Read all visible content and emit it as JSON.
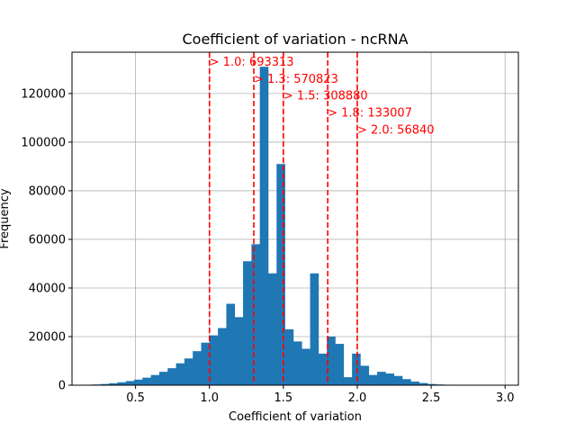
{
  "chart_data": {
    "type": "bar",
    "title": "Coefficient of variation - ncRNA",
    "xlabel": "Coefficient of variation",
    "ylabel": "Frequency",
    "xlim": [
      0.07,
      3.09
    ],
    "ylim": [
      0,
      137000
    ],
    "xticks": [
      0.5,
      1.0,
      1.5,
      2.0,
      2.5,
      3.0
    ],
    "xtick_labels": [
      "0.5",
      "1.0",
      "1.5",
      "2.0",
      "2.5",
      "3.0"
    ],
    "yticks": [
      0,
      20000,
      40000,
      60000,
      80000,
      100000,
      120000
    ],
    "ytick_labels": [
      "0",
      "20000",
      "40000",
      "60000",
      "80000",
      "100000",
      "120000"
    ],
    "grid": true,
    "color": "#1f77b4",
    "bin_width": 0.0567,
    "bin_starts": [
      0.15,
      0.2067,
      0.2634,
      0.3201,
      0.3768,
      0.4335,
      0.4902,
      0.5469,
      0.6036,
      0.6603,
      0.717,
      0.7737,
      0.8304,
      0.8871,
      0.9438,
      1.0005,
      1.0572,
      1.1139,
      1.1706,
      1.2273,
      1.284,
      1.3407,
      1.3974,
      1.4541,
      1.5108,
      1.5675,
      1.6242,
      1.6809,
      1.7376,
      1.7943,
      1.851,
      1.9077,
      1.9644,
      2.0211,
      2.0778,
      2.1345,
      2.1912,
      2.2479,
      2.3046,
      2.3613,
      2.418,
      2.4747,
      2.5314,
      2.5881,
      2.6448,
      2.7015,
      2.7582,
      2.8149,
      2.8716,
      2.9283
    ],
    "values": [
      200,
      300,
      500,
      800,
      1200,
      1700,
      2300,
      3100,
      4200,
      5500,
      7000,
      9000,
      11000,
      14000,
      17500,
      20500,
      23500,
      33500,
      28000,
      51000,
      58000,
      131000,
      46000,
      91000,
      23000,
      18000,
      15000,
      46000,
      13000,
      20000,
      17000,
      3300,
      13000,
      8000,
      4200,
      5500,
      4800,
      3800,
      2500,
      1500,
      900,
      500,
      300,
      200,
      100,
      80,
      60,
      40,
      20,
      10
    ],
    "vlines": [
      1.0,
      1.3,
      1.5,
      1.8,
      2.0
    ],
    "vline_color": "#ff0000",
    "annotations": [
      {
        "x": 1.0,
        "y": 131500,
        "text": "> 1.0: 693313"
      },
      {
        "x": 1.3,
        "y": 124500,
        "text": "> 1.3: 570823"
      },
      {
        "x": 1.5,
        "y": 117500,
        "text": "> 1.5: 308880"
      },
      {
        "x": 1.8,
        "y": 110500,
        "text": "> 1.8: 133007"
      },
      {
        "x": 2.0,
        "y": 103500,
        "text": "> 2.0: 56840"
      }
    ]
  }
}
